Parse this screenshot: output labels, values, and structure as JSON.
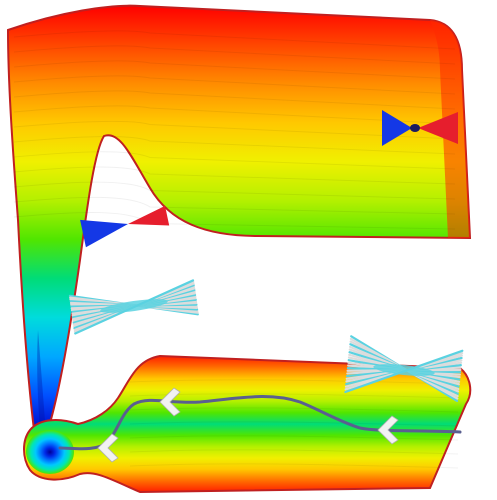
{
  "figure": {
    "colormap": [
      "#0000c8",
      "#0050ff",
      "#00a8ff",
      "#00dcdc",
      "#00dc78",
      "#50e600",
      "#b4f000",
      "#f0f000",
      "#ffc800",
      "#ff8c00",
      "#ff4600",
      "#ff0000"
    ],
    "outline_color": "#9a2020",
    "pathway_color": "#5a5f90",
    "arrow_color": "#f2f2f2",
    "molecule_colors": {
      "blue_end": "#1438e6",
      "red_end": "#e61e2d",
      "cyan_bundle": "#5ad2e1",
      "white_bundle": "#dcdcdc"
    },
    "icons": [
      "folded-surface",
      "funnel-icon",
      "valley-channel-icon",
      "trajectory-path-icon",
      "direction-chevron-icon",
      "cone-pair-icon",
      "conformer-bundle-icon"
    ]
  }
}
